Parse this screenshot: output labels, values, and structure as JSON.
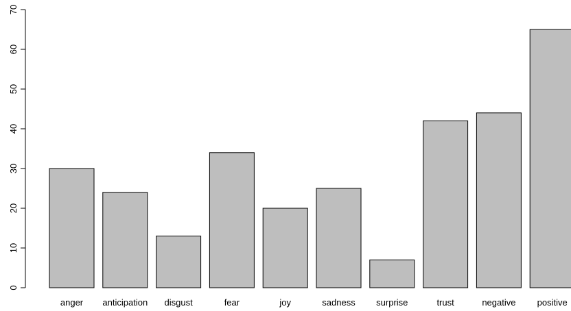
{
  "chart_data": {
    "type": "bar",
    "categories": [
      "anger",
      "anticipation",
      "disgust",
      "fear",
      "joy",
      "sadness",
      "surprise",
      "trust",
      "negative",
      "positive"
    ],
    "values": [
      30,
      24,
      13,
      34,
      20,
      25,
      7,
      42,
      44,
      65
    ],
    "title": "",
    "xlabel": "",
    "ylabel": "",
    "ylim": [
      0,
      70
    ],
    "yticks": [
      0,
      10,
      20,
      30,
      40,
      50,
      60,
      70
    ],
    "grid": false,
    "legend": "none",
    "bar_color": "#bebebe",
    "bar_border_color": "#000000"
  }
}
